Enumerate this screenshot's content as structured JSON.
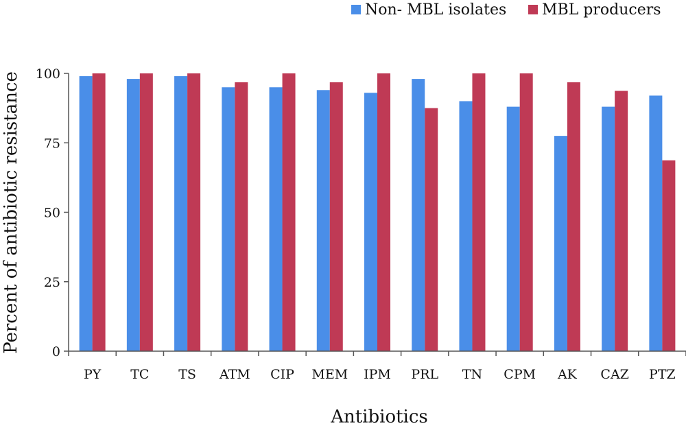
{
  "chart_data": {
    "type": "bar",
    "title": "",
    "xlabel": "Antibiotics",
    "ylabel": "Percent of antibiotic resistance",
    "ylim": [
      0,
      100
    ],
    "yticks": [
      0,
      25,
      50,
      75,
      100
    ],
    "grid": false,
    "legend_position": "top-right",
    "categories": [
      "PY",
      "TC",
      "TS",
      "ATM",
      "CIP",
      "MEM",
      "IPM",
      "PRL",
      "TN",
      "CPM",
      "AK",
      "CAZ",
      "PTZ"
    ],
    "series": [
      {
        "name": "Non- MBL isolates",
        "color": "#4a8ee8",
        "values": [
          99,
          98,
          99,
          95,
          95,
          94,
          93,
          98,
          90,
          88,
          77.5,
          88,
          92
        ]
      },
      {
        "name": "MBL producers",
        "color": "#bf3a55",
        "values": [
          100,
          100,
          100,
          96.8,
          100,
          96.8,
          100,
          87.5,
          100,
          100,
          96.8,
          93.7,
          68.7
        ]
      }
    ]
  }
}
